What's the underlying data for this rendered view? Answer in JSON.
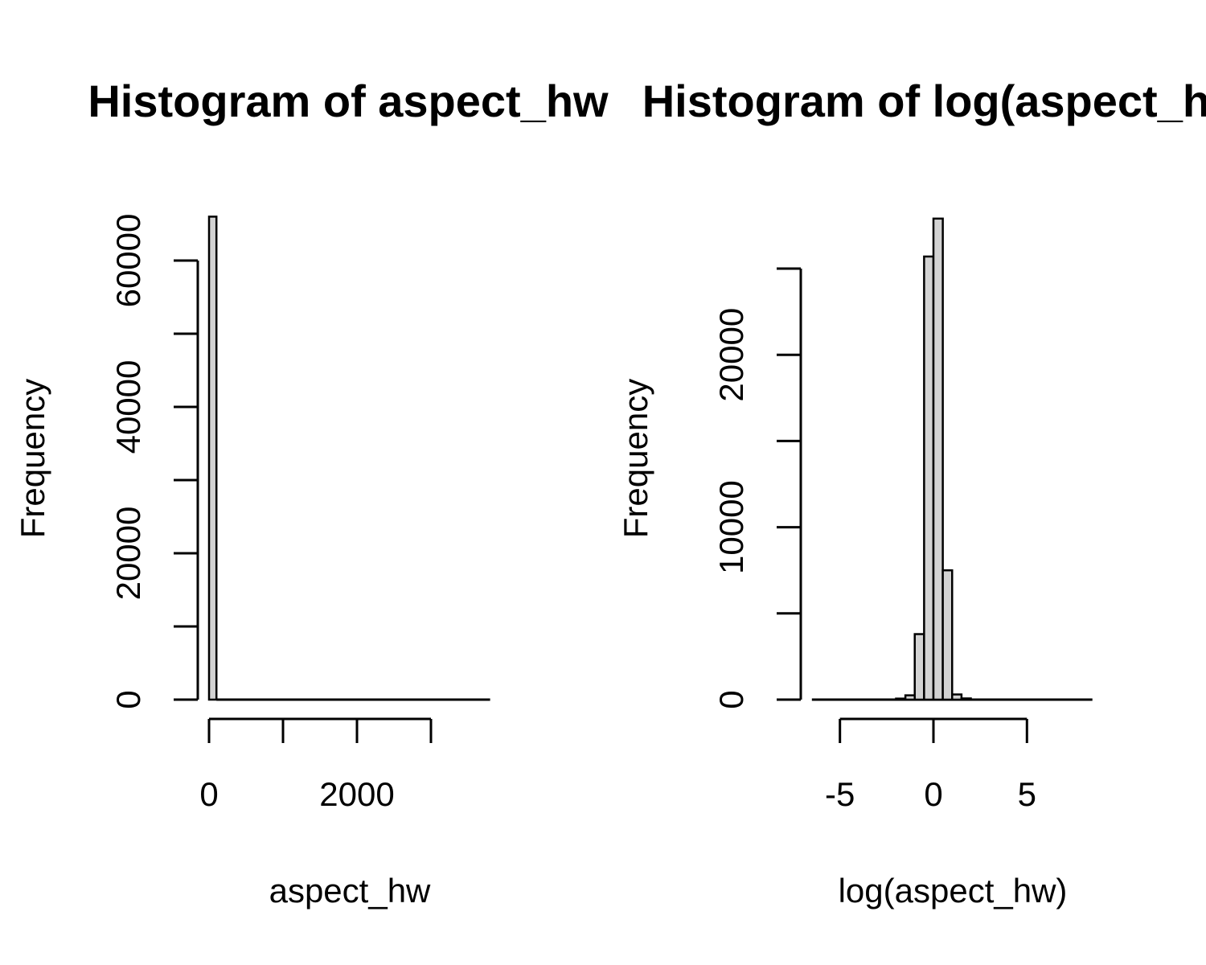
{
  "chart_data": [
    {
      "type": "bar",
      "title": "Histogram of aspect_hw",
      "xlabel": "aspect_hw",
      "ylabel": "Frequency",
      "xlim": [
        0,
        3800
      ],
      "ylim": [
        0,
        67000
      ],
      "bin_width": 100,
      "x_ticks": [
        0,
        1000,
        2000,
        3000
      ],
      "x_tick_labels": [
        "0",
        "",
        "2000",
        ""
      ],
      "y_ticks": [
        0,
        10000,
        20000,
        30000,
        40000,
        50000,
        60000
      ],
      "y_tick_labels": [
        "0",
        "",
        "20000",
        "",
        "40000",
        "",
        "60000"
      ],
      "bins": [
        {
          "x0": 0,
          "x1": 100,
          "count": 66000
        },
        {
          "x0": 100,
          "x1": 3800,
          "count": 0
        }
      ]
    },
    {
      "type": "bar",
      "title": "Histogram of log(aspect_hw)",
      "xlabel": "log(aspect_hw)",
      "ylabel": "Frequency",
      "xlim": [
        -6.5,
        8.5
      ],
      "ylim": [
        0,
        28000
      ],
      "bin_width": 0.5,
      "x_ticks": [
        -5,
        0,
        5
      ],
      "x_tick_labels": [
        "-5",
        "0",
        "5"
      ],
      "y_ticks": [
        0,
        5000,
        10000,
        15000,
        20000,
        25000
      ],
      "y_tick_labels": [
        "0",
        "",
        "10000",
        "",
        "20000",
        ""
      ],
      "bins": [
        {
          "x0": -2.0,
          "x1": -1.5,
          "count": 60
        },
        {
          "x0": -1.5,
          "x1": -1.0,
          "count": 250
        },
        {
          "x0": -1.0,
          "x1": -0.5,
          "count": 3800
        },
        {
          "x0": -0.5,
          "x1": 0.0,
          "count": 25700
        },
        {
          "x0": 0.0,
          "x1": 0.5,
          "count": 27900
        },
        {
          "x0": 0.5,
          "x1": 1.0,
          "count": 7500
        },
        {
          "x0": 1.0,
          "x1": 1.5,
          "count": 300
        },
        {
          "x0": 1.5,
          "x1": 2.0,
          "count": 70
        }
      ]
    }
  ]
}
